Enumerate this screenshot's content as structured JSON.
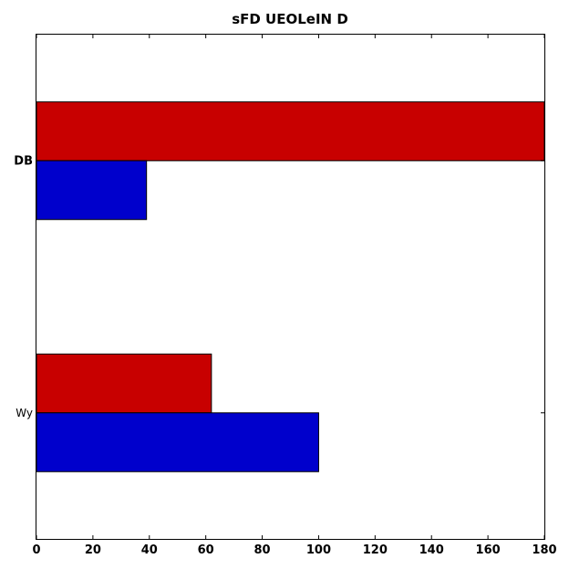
{
  "chart_data": {
    "type": "bar",
    "orientation": "horizontal",
    "title": "sFD  UEOLeIN D",
    "xlabel": "",
    "ylabel": "",
    "categories": [
      "DB",
      "Wy"
    ],
    "series": [
      {
        "color": "#c80000",
        "values": [
          180,
          62
        ]
      },
      {
        "color": "#0000cc",
        "values": [
          39,
          100
        ]
      }
    ],
    "xlim": [
      0,
      180
    ],
    "xticks": [
      "0",
      "20",
      "40",
      "60",
      "80",
      "100",
      "120",
      "140",
      "160",
      "180"
    ],
    "grid": false,
    "legend": "none"
  }
}
